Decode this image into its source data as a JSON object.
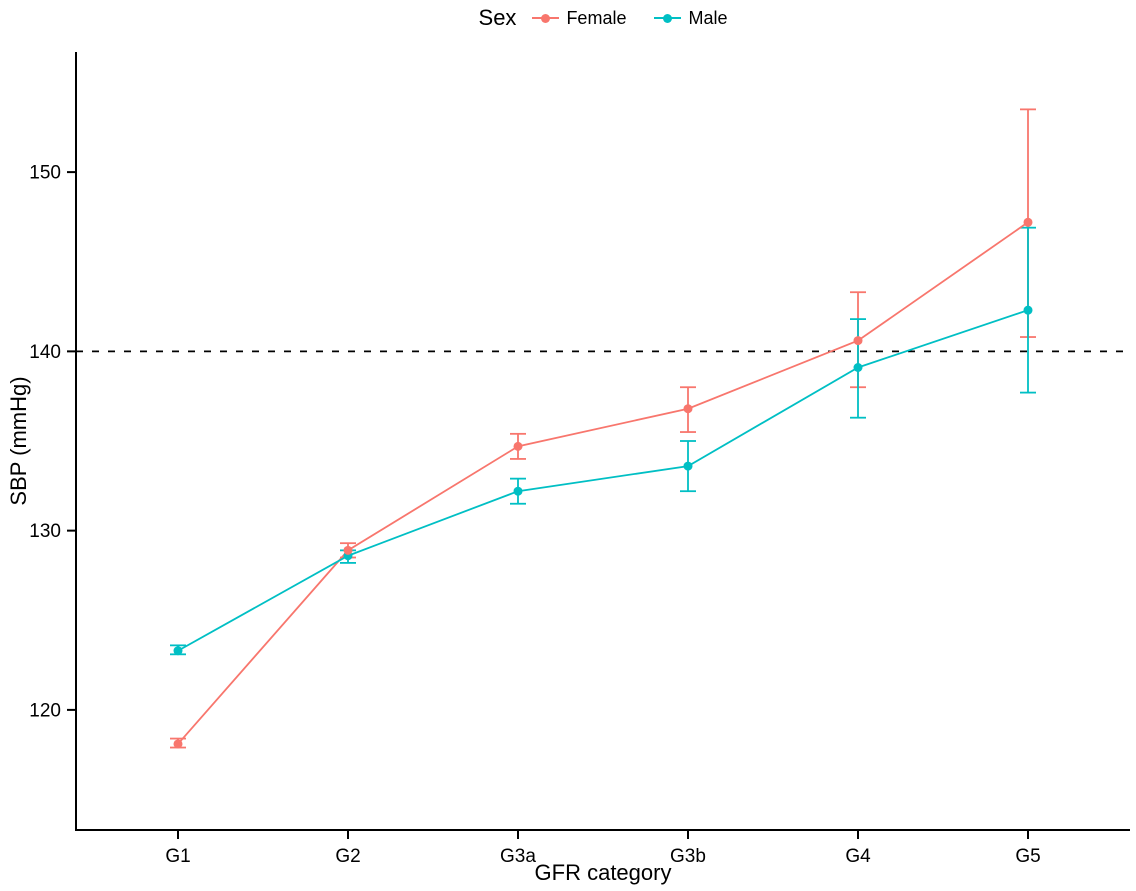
{
  "legend": {
    "title": "Sex",
    "entries": [
      {
        "label": "Female",
        "color": "#F8766D"
      },
      {
        "label": "Male",
        "color": "#00BFC4"
      }
    ]
  },
  "axes": {
    "xlabel": "GFR category",
    "ylabel": "SBP (mmHg)"
  },
  "chart_data": {
    "type": "line",
    "title": "",
    "xlabel": "GFR category",
    "ylabel": "SBP (mmHg)",
    "categories": [
      "G1",
      "G2",
      "G3a",
      "G3b",
      "G4",
      "G5"
    ],
    "ylim": [
      113.3,
      156.7
    ],
    "yticks": [
      120,
      130,
      140,
      150
    ],
    "grid": false,
    "legend_position": "top",
    "reference_line": {
      "y": 140,
      "style": "dashed",
      "color": "#000000"
    },
    "series": [
      {
        "name": "Female",
        "color": "#F8766D",
        "values": [
          118.1,
          128.9,
          134.7,
          136.8,
          140.6,
          147.2
        ],
        "lower": [
          117.9,
          128.5,
          134.0,
          135.5,
          138.0,
          140.8
        ],
        "upper": [
          118.4,
          129.3,
          135.4,
          138.0,
          143.3,
          153.5
        ]
      },
      {
        "name": "Male",
        "color": "#00BFC4",
        "values": [
          123.3,
          128.6,
          132.2,
          133.6,
          139.1,
          142.3
        ],
        "lower": [
          123.1,
          128.2,
          131.5,
          132.2,
          136.3,
          137.7
        ],
        "upper": [
          123.6,
          128.9,
          132.9,
          135.0,
          141.8,
          146.9
        ]
      }
    ]
  }
}
